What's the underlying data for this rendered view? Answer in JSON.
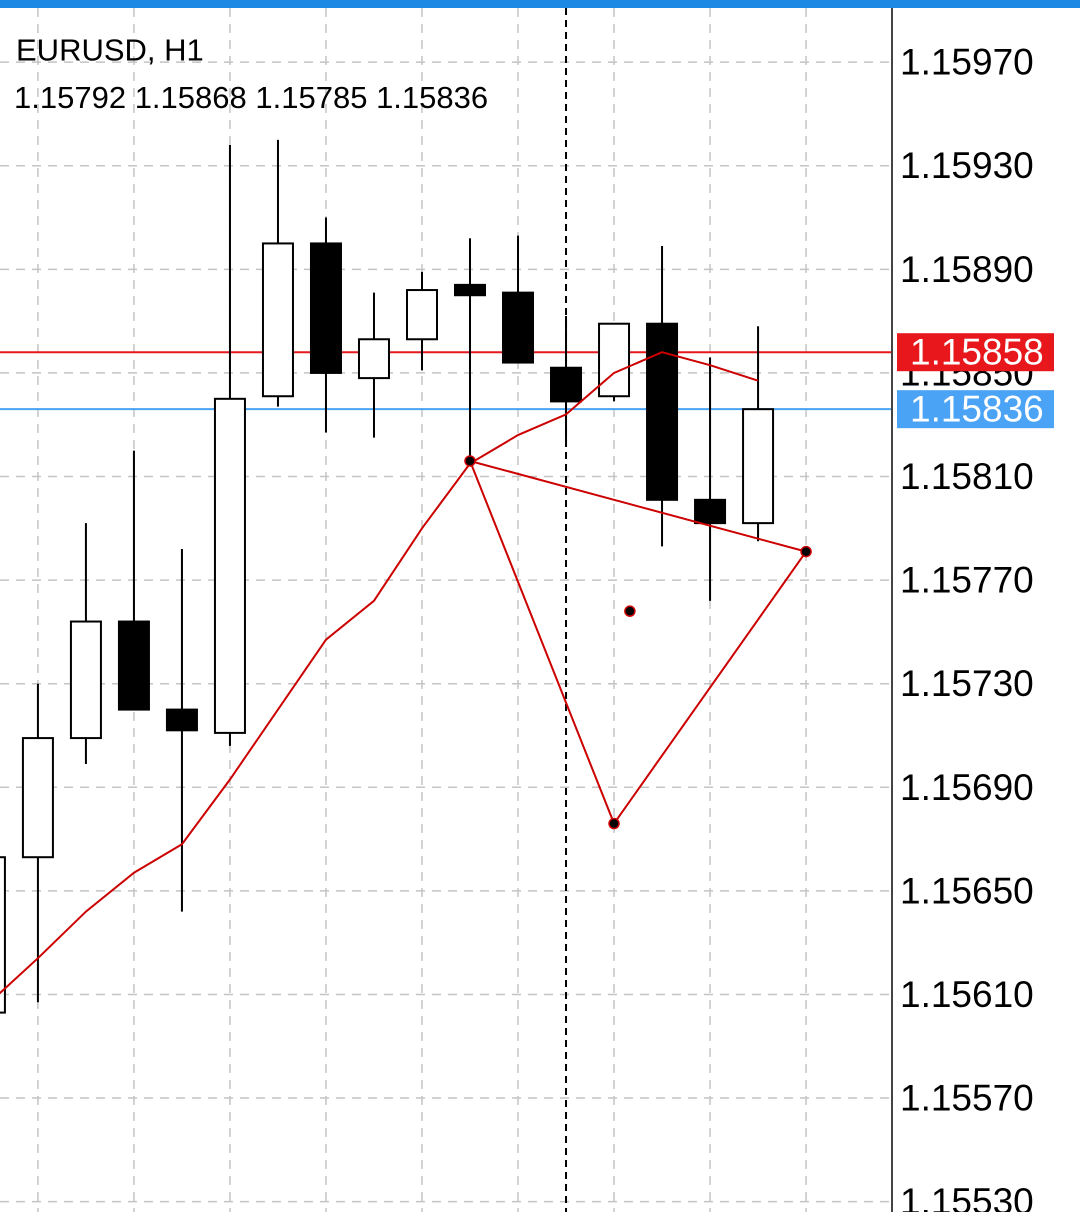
{
  "chart_data": {
    "type": "candlestick",
    "title": "EURUSD, H1",
    "xlim": [
      0.21,
      18.79
    ],
    "ylim": [
      1.15526,
      1.15994
    ],
    "yticks": [
      {
        "value": 1.1553,
        "label": "1.15530"
      },
      {
        "value": 1.1557,
        "label": "1.15570"
      },
      {
        "value": 1.1561,
        "label": "1.15610"
      },
      {
        "value": 1.1565,
        "label": "1.15650"
      },
      {
        "value": 1.1569,
        "label": "1.15690"
      },
      {
        "value": 1.1573,
        "label": "1.15730"
      },
      {
        "value": 1.1577,
        "label": "1.15770"
      },
      {
        "value": 1.1581,
        "label": "1.15810"
      },
      {
        "value": 1.1585,
        "label": "1.15850"
      },
      {
        "value": 1.1589,
        "label": "1.15890"
      },
      {
        "value": 1.1593,
        "label": "1.15930"
      },
      {
        "value": 1.1597,
        "label": "1.15970"
      }
    ],
    "grid": true,
    "bull_color": "#ffffff",
    "bear_color": "#000000",
    "candles": [
      {
        "open": 1.15603,
        "high": 1.15663,
        "low": 1.15603,
        "close": 1.15663
      },
      {
        "open": 1.15663,
        "high": 1.1573,
        "low": 1.15607,
        "close": 1.15709
      },
      {
        "open": 1.15709,
        "high": 1.15792,
        "low": 1.15699,
        "close": 1.15754
      },
      {
        "open": 1.15754,
        "high": 1.1582,
        "low": 1.1572,
        "close": 1.1572
      },
      {
        "open": 1.1572,
        "high": 1.15782,
        "low": 1.15642,
        "close": 1.15712
      },
      {
        "open": 1.15711,
        "high": 1.15938,
        "low": 1.15706,
        "close": 1.1584
      },
      {
        "open": 1.15841,
        "high": 1.1594,
        "low": 1.15837,
        "close": 1.159
      },
      {
        "open": 1.159,
        "high": 1.1591,
        "low": 1.15827,
        "close": 1.1585
      },
      {
        "open": 1.15848,
        "high": 1.15881,
        "low": 1.15825,
        "close": 1.15863
      },
      {
        "open": 1.15863,
        "high": 1.15889,
        "low": 1.15851,
        "close": 1.15882
      },
      {
        "open": 1.15884,
        "high": 1.15902,
        "low": 1.15816,
        "close": 1.1588
      },
      {
        "open": 1.15881,
        "high": 1.15903,
        "low": 1.15854,
        "close": 1.15854
      },
      {
        "open": 1.15852,
        "high": 1.15872,
        "low": 1.15822,
        "close": 1.15839
      },
      {
        "open": 1.15841,
        "high": 1.15869,
        "low": 1.15839,
        "close": 1.15869
      },
      {
        "open": 1.15869,
        "high": 1.15899,
        "low": 1.15783,
        "close": 1.15801
      },
      {
        "open": 1.15801,
        "high": 1.15856,
        "low": 1.15762,
        "close": 1.15792
      },
      {
        "open": 1.15792,
        "high": 1.15868,
        "low": 1.15785,
        "close": 1.15836
      }
    ],
    "moving_average": {
      "color": "#cc0000",
      "values": [
        1.15607,
        1.15624,
        1.15642,
        1.15657,
        1.15668,
        1.15693,
        1.1572,
        1.15747,
        1.15762,
        1.1579,
        1.15815,
        1.15826,
        1.15834,
        1.1585,
        1.15858,
        1.15853,
        1.15847
      ]
    },
    "price_lines": [
      {
        "value": 1.15858,
        "color": "#e8171b"
      },
      {
        "value": 1.15836,
        "color": "#4aa3f5"
      }
    ],
    "drawing": {
      "color": "#cc0000",
      "x": [
        10,
        13,
        17
      ],
      "y": [
        1.15816,
        1.15676,
        1.15781
      ]
    },
    "marker": {
      "x": 13.33,
      "y": 1.15758
    },
    "crosshair_x": 12
  }
}
